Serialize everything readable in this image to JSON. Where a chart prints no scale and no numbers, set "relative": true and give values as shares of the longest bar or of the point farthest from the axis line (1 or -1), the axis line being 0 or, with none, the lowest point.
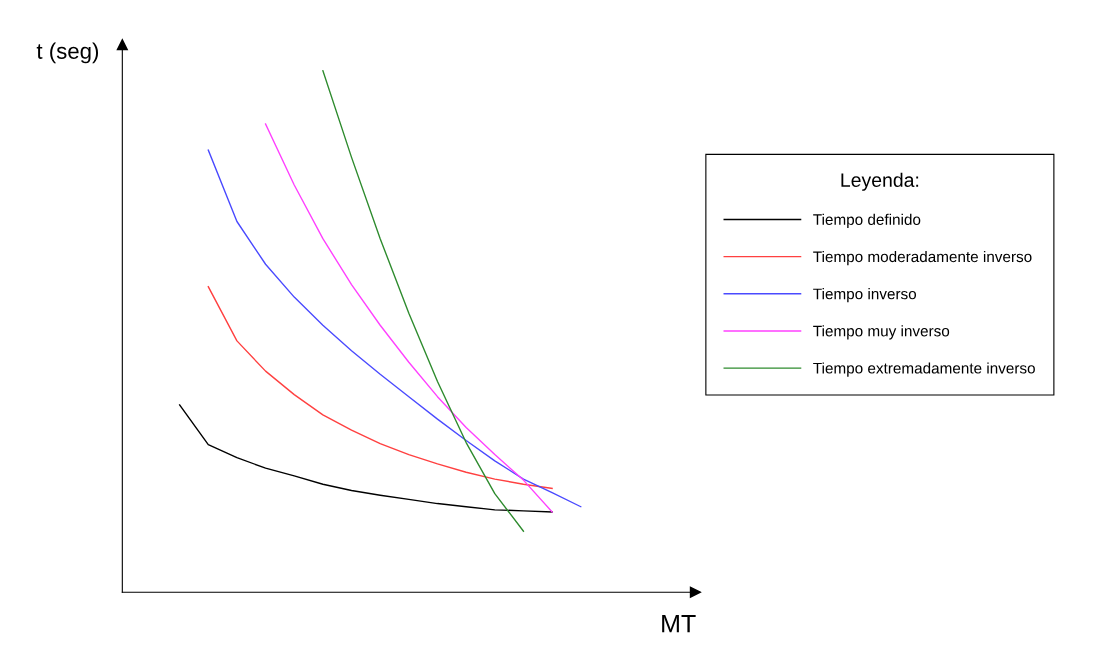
{
  "chart_data": {
    "type": "line",
    "relative": true,
    "xlabel": "MT",
    "ylabel": "t (seg)",
    "legend_title": "Leyenda:",
    "legend": "right",
    "marker": "none",
    "line_style": "solid",
    "categories": [
      null,
      null,
      null,
      null,
      null,
      null,
      null,
      null,
      null,
      null,
      null,
      null,
      null,
      null,
      null,
      null
    ],
    "series": [
      {
        "name": "Tiempo definido",
        "color": "#000000",
        "values": [
          0.359,
          0.283,
          0.258,
          0.238,
          0.223,
          0.207,
          0.195,
          0.186,
          0.178,
          0.17,
          0.164,
          0.158,
          0.156,
          0.154,
          null,
          null
        ]
      },
      {
        "name": "Tiempo moderadamente inverso",
        "color": "#ff4040",
        "values": [
          null,
          0.586,
          0.482,
          0.424,
          0.379,
          0.34,
          0.311,
          0.285,
          0.264,
          0.246,
          0.23,
          0.217,
          0.207,
          0.199,
          null,
          null
        ]
      },
      {
        "name": "Tiempo inverso",
        "color": "#4a4aff",
        "values": [
          null,
          0.848,
          0.711,
          0.629,
          0.566,
          0.512,
          0.463,
          0.418,
          0.375,
          0.332,
          0.291,
          0.252,
          0.217,
          0.191,
          0.164,
          null
        ]
      },
      {
        "name": "Tiempo muy inverso",
        "color": "#ff40ff",
        "values": [
          null,
          null,
          null,
          0.898,
          0.781,
          0.678,
          0.59,
          0.512,
          0.441,
          0.375,
          0.316,
          0.264,
          0.215,
          0.154,
          null,
          null
        ]
      },
      {
        "name": "Tiempo extremadamente inverso",
        "color": "#2e8b2e",
        "values": [
          null,
          null,
          null,
          null,
          null,
          1.0,
          0.834,
          0.678,
          0.535,
          0.404,
          0.287,
          0.189,
          0.117,
          null,
          null,
          null
        ]
      }
    ]
  }
}
